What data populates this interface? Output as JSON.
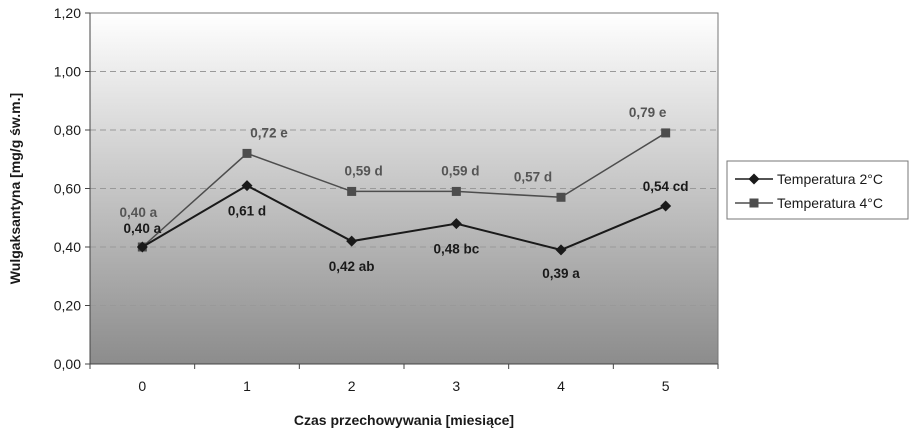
{
  "chart_data": {
    "type": "line",
    "xlabel": "Czas przechowywania [miesiące]",
    "ylabel": "Wulgaksantyna [mg/g św.m.]",
    "categories": [
      "0",
      "1",
      "2",
      "3",
      "4",
      "5"
    ],
    "ylim": [
      0,
      1.2
    ],
    "yticks": [
      "0,00",
      "0,20",
      "0,40",
      "0,60",
      "0,80",
      "1,00",
      "1,20"
    ],
    "grid": true,
    "legend_position": "right",
    "series": [
      {
        "name": "Temperatura 2°C",
        "marker": "diamond",
        "color": "#1a1a1a",
        "values": [
          0.4,
          0.61,
          0.42,
          0.48,
          0.39,
          0.54
        ],
        "labels": [
          "0,40 a",
          "0,61 d",
          "0,42 ab",
          "0,48 bc",
          "0,39 a",
          "0,54 cd"
        ]
      },
      {
        "name": "Temperatura 4°C",
        "marker": "square",
        "color": "#4d4d4d",
        "values": [
          0.4,
          0.72,
          0.59,
          0.59,
          0.57,
          0.79
        ],
        "labels": [
          "0,40 a",
          "0,72 e",
          "0,59 d",
          "0,59 d",
          "0,57 d",
          "0,79 e"
        ]
      }
    ]
  }
}
